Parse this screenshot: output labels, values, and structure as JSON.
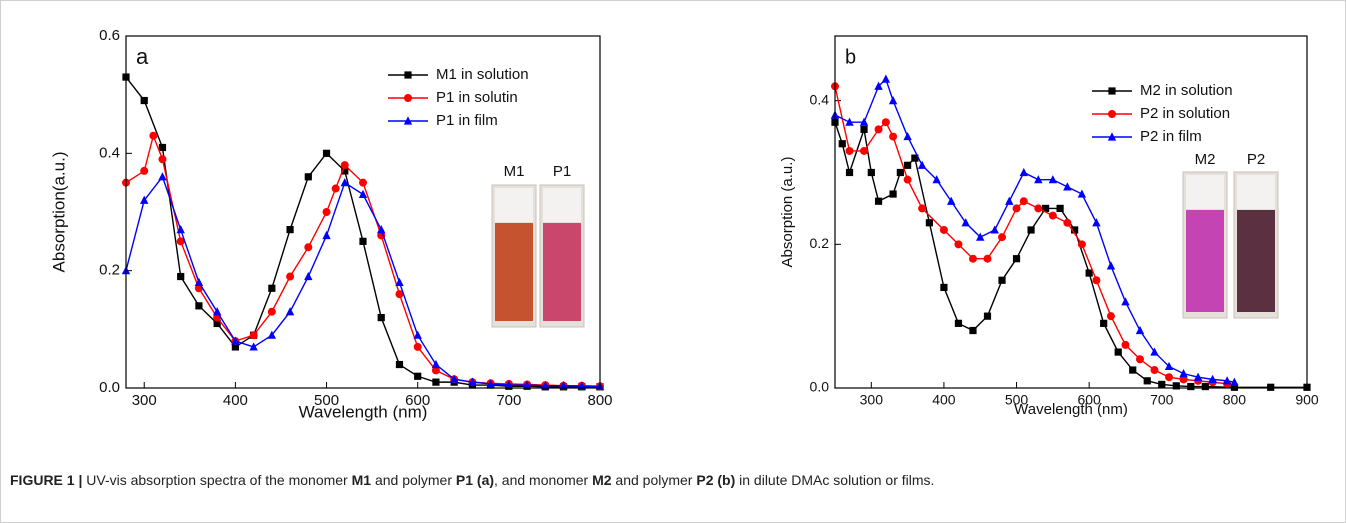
{
  "chart_data": [
    {
      "type": "line",
      "panel": "a",
      "xlabel": "Wavelength (nm)",
      "ylabel": "Absorption(a.u.)",
      "xlim": [
        280,
        800
      ],
      "xticks": [
        300,
        400,
        500,
        600,
        700,
        800
      ],
      "ylim": [
        0,
        0.6
      ],
      "yticks": [
        {
          "value": 0,
          "label": "0.0"
        },
        0.2,
        0.4,
        0.6
      ],
      "legend": "upper right",
      "insets": [
        {
          "label": "M1",
          "color": "#c5532f"
        },
        {
          "label": "P1",
          "color": "#c9476a"
        }
      ],
      "series": [
        {
          "name": "M1 in solution",
          "color": "#000000",
          "marker": "square",
          "x": [
            280,
            300,
            320,
            340,
            360,
            380,
            400,
            420,
            440,
            460,
            480,
            500,
            520,
            540,
            560,
            580,
            600,
            620,
            640,
            660,
            680,
            700,
            720,
            740,
            760,
            780,
            800
          ],
          "values": [
            0.53,
            0.49,
            0.41,
            0.19,
            0.14,
            0.11,
            0.07,
            0.09,
            0.17,
            0.27,
            0.36,
            0.4,
            0.37,
            0.25,
            0.12,
            0.04,
            0.02,
            0.01,
            0.01,
            0.005,
            0.005,
            0.003,
            0.003,
            0.002,
            0.002,
            0.002,
            0.002
          ]
        },
        {
          "name": "P1 in solutin",
          "color": "#ff0000",
          "marker": "circle",
          "x": [
            280,
            300,
            310,
            320,
            340,
            360,
            380,
            400,
            420,
            440,
            460,
            480,
            500,
            510,
            520,
            540,
            560,
            580,
            600,
            620,
            640,
            660,
            680,
            700,
            720,
            740,
            760,
            780,
            800
          ],
          "values": [
            0.35,
            0.37,
            0.43,
            0.39,
            0.25,
            0.17,
            0.12,
            0.08,
            0.09,
            0.13,
            0.19,
            0.24,
            0.3,
            0.34,
            0.38,
            0.35,
            0.26,
            0.16,
            0.07,
            0.03,
            0.015,
            0.01,
            0.008,
            0.007,
            0.006,
            0.005,
            0.004,
            0.004,
            0.003
          ]
        },
        {
          "name": "P1 in film",
          "color": "#0000ff",
          "marker": "triangle",
          "x": [
            280,
            300,
            320,
            340,
            360,
            380,
            400,
            420,
            440,
            460,
            480,
            500,
            520,
            540,
            560,
            580,
            600,
            620,
            640,
            660,
            680,
            700,
            720,
            740,
            760,
            780,
            800
          ],
          "values": [
            0.2,
            0.32,
            0.36,
            0.27,
            0.18,
            0.13,
            0.08,
            0.07,
            0.09,
            0.13,
            0.19,
            0.26,
            0.35,
            0.33,
            0.27,
            0.18,
            0.09,
            0.04,
            0.015,
            0.01,
            0.007,
            0.005,
            0.005,
            0.004,
            0.004,
            0.003,
            0.003
          ]
        }
      ]
    },
    {
      "type": "line",
      "panel": "b",
      "xlabel": "Wavelength (nm)",
      "ylabel": "Absorption (a.u.)",
      "xlim": [
        250,
        900
      ],
      "xticks": [
        300,
        400,
        500,
        600,
        700,
        800,
        900
      ],
      "ylim": [
        0,
        0.49
      ],
      "yticks": [
        {
          "value": 0,
          "label": "0.0"
        },
        0.2,
        0.4
      ],
      "legend": "upper right",
      "insets": [
        {
          "label": "M2",
          "color": "#c444b4"
        },
        {
          "label": "P2",
          "color": "#5b3142"
        }
      ],
      "series": [
        {
          "name": "M2 in solution",
          "color": "#000000",
          "marker": "square",
          "x": [
            250,
            260,
            270,
            290,
            300,
            310,
            330,
            340,
            350,
            360,
            380,
            400,
            420,
            440,
            460,
            480,
            500,
            520,
            540,
            560,
            580,
            600,
            620,
            640,
            660,
            680,
            700,
            720,
            740,
            760,
            800,
            850,
            900
          ],
          "values": [
            0.37,
            0.34,
            0.3,
            0.36,
            0.3,
            0.26,
            0.27,
            0.3,
            0.31,
            0.32,
            0.23,
            0.14,
            0.09,
            0.08,
            0.1,
            0.15,
            0.18,
            0.22,
            0.25,
            0.25,
            0.22,
            0.16,
            0.09,
            0.05,
            0.025,
            0.01,
            0.005,
            0.003,
            0.002,
            0.002,
            0.001,
            0.001,
            0.001
          ]
        },
        {
          "name": "P2  in solution",
          "color": "#ff0000",
          "marker": "circle",
          "x": [
            250,
            270,
            290,
            310,
            320,
            330,
            350,
            370,
            400,
            420,
            440,
            460,
            480,
            500,
            510,
            530,
            550,
            570,
            590,
            610,
            630,
            650,
            670,
            690,
            710,
            730,
            750,
            770,
            790
          ],
          "values": [
            0.42,
            0.33,
            0.33,
            0.36,
            0.37,
            0.35,
            0.29,
            0.25,
            0.22,
            0.2,
            0.18,
            0.18,
            0.21,
            0.25,
            0.26,
            0.25,
            0.24,
            0.23,
            0.2,
            0.15,
            0.1,
            0.06,
            0.04,
            0.025,
            0.015,
            0.012,
            0.01,
            0.008,
            0.006
          ]
        },
        {
          "name": "P2  in film",
          "color": "#0000ff",
          "marker": "triangle",
          "x": [
            250,
            270,
            290,
            310,
            320,
            330,
            350,
            370,
            390,
            410,
            430,
            450,
            470,
            490,
            510,
            530,
            550,
            570,
            590,
            610,
            630,
            650,
            670,
            690,
            710,
            730,
            750,
            770,
            790,
            800
          ],
          "values": [
            0.38,
            0.37,
            0.37,
            0.42,
            0.43,
            0.4,
            0.35,
            0.31,
            0.29,
            0.26,
            0.23,
            0.21,
            0.22,
            0.26,
            0.3,
            0.29,
            0.29,
            0.28,
            0.27,
            0.23,
            0.17,
            0.12,
            0.08,
            0.05,
            0.03,
            0.02,
            0.015,
            0.012,
            0.01,
            0.008
          ]
        }
      ]
    }
  ],
  "caption": [
    {
      "text": "FIGURE 1 | ",
      "bold": true
    },
    {
      "text": "UV-vis absorption spectra of the monomer ",
      "bold": false
    },
    {
      "text": "M1",
      "bold": true
    },
    {
      "text": " and polymer ",
      "bold": false
    },
    {
      "text": "P1 (a)",
      "bold": true
    },
    {
      "text": ", and monomer ",
      "bold": false
    },
    {
      "text": "M2",
      "bold": true
    },
    {
      "text": " and polymer ",
      "bold": false
    },
    {
      "text": "P2 (b)",
      "bold": true
    },
    {
      "text": " in dilute DMAc solution or films.",
      "bold": false
    }
  ]
}
